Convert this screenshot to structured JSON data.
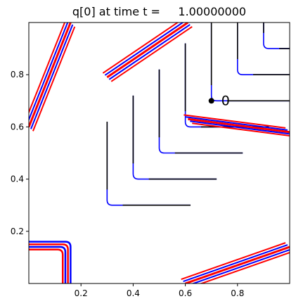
{
  "chart_data": {
    "type": "contour",
    "title": "q[0] at time t =     1.00000000",
    "xlabel": "",
    "ylabel": "",
    "xlim": [
      0.0,
      1.0
    ],
    "ylim": [
      0.0,
      1.0
    ],
    "x_ticks": [
      "0.2",
      "0.4",
      "0.6",
      "0.8"
    ],
    "y_ticks": [
      "0.2",
      "0.4",
      "0.6",
      "0.8"
    ],
    "grid": false,
    "legend": "none",
    "colors": {
      "true_contours": "#000000",
      "approx_contours_blue": "#0000ff",
      "approx_contours_red": "#ff0000"
    },
    "series": [
      {
        "contours": [
          {
            "corner": [
              0.3,
              0.3
            ],
            "top_y": 0.62,
            "right_x": 0.62
          },
          {
            "corner": [
              0.4,
              0.4
            ],
            "top_y": 0.72,
            "right_x": 0.72
          },
          {
            "corner": [
              0.5,
              0.5
            ],
            "top_y": 0.82,
            "right_x": 0.82
          },
          {
            "corner": [
              0.6,
              0.6
            ],
            "top_y": 0.92,
            "right_x": 0.92
          },
          {
            "corner": [
              0.7,
              0.7
            ],
            "top_y": 1.0,
            "right_x": 1.0
          },
          {
            "corner": [
              0.8,
              0.8
            ],
            "top_y": 1.0,
            "right_x": 1.0
          },
          {
            "corner": [
              0.9,
              0.9
            ],
            "top_y": 1.0,
            "right_x": 1.0
          }
        ],
        "wrap_bands": [
          {
            "from": [
              0.0,
              0.6
            ],
            "to": [
              0.16,
              1.0
            ]
          },
          {
            "from": [
              0.6,
              0.0
            ],
            "to": [
              1.0,
              0.14
            ]
          },
          {
            "from": [
              0.61,
              0.63
            ],
            "to": [
              1.0,
              0.58
            ]
          },
          {
            "from": [
              0.3,
              0.79
            ],
            "to": [
              0.61,
              1.0
            ]
          }
        ],
        "corner_block": {
          "x": [
            0.0,
            0.16
          ],
          "y": [
            0.0,
            0.16
          ]
        }
      }
    ],
    "marker": {
      "x": 0.7,
      "y": 0.7,
      "label": "0"
    }
  }
}
